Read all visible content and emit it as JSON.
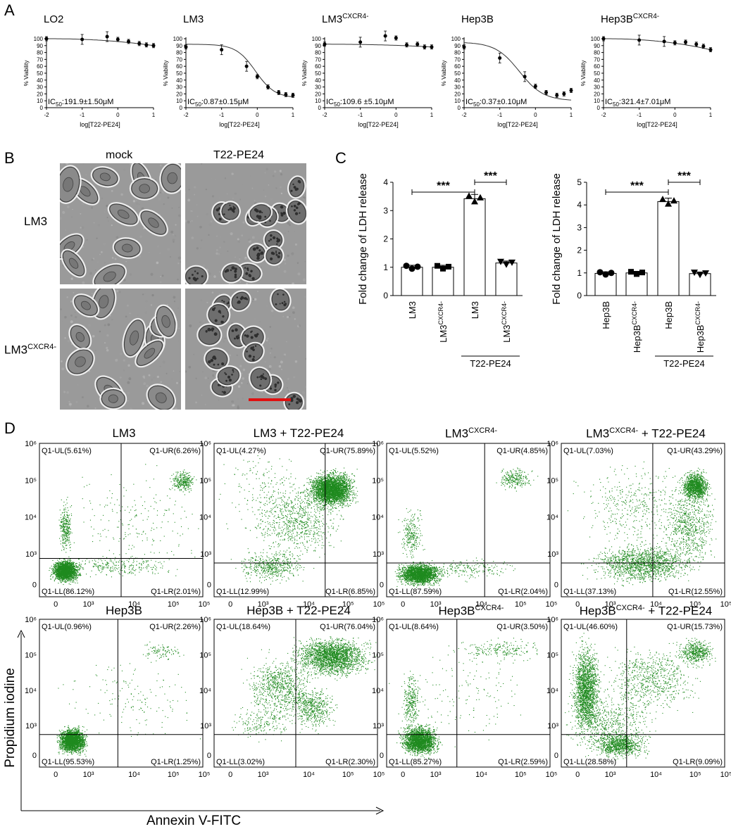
{
  "panels": {
    "A": "A",
    "B": "B",
    "C": "C",
    "D": "D"
  },
  "panel_a": {
    "ylabel": "% Viability",
    "xlabel": "log[T22-PE24]",
    "yticks": [
      "0",
      "10",
      "20",
      "30",
      "40",
      "50",
      "60",
      "70",
      "80",
      "90",
      "100"
    ],
    "xticks": [
      "-2",
      "-1",
      "0",
      "1"
    ],
    "plots": [
      {
        "title": "LO2",
        "title_sup": "",
        "ic50": "IC",
        "ic50_sub": "50",
        "ic50_val": ":191.9±1.50μM",
        "curve": "flat",
        "points": [
          [
            -2,
            100
          ],
          [
            -1,
            99
          ],
          [
            -0.3,
            103
          ],
          [
            0,
            99
          ],
          [
            0.3,
            96
          ],
          [
            0.6,
            93
          ],
          [
            0.8,
            91
          ],
          [
            1,
            90
          ]
        ]
      },
      {
        "title": "LM3",
        "title_sup": "",
        "ic50": "IC",
        "ic50_sub": "50",
        "ic50_val": ":0.87±0.15μM",
        "curve": "sigmoid",
        "points": [
          [
            -2,
            88
          ],
          [
            -1,
            84
          ],
          [
            -0.3,
            60
          ],
          [
            0,
            45
          ],
          [
            0.3,
            30
          ],
          [
            0.6,
            22
          ],
          [
            0.8,
            19
          ],
          [
            1,
            18
          ]
        ]
      },
      {
        "title": "LM3",
        "title_sup": "CXCR4-",
        "ic50": "IC",
        "ic50_sub": "50",
        "ic50_val": ":109.6 ±5.10μM",
        "curve": "flat",
        "points": [
          [
            -2,
            92
          ],
          [
            -1,
            95
          ],
          [
            -0.3,
            104
          ],
          [
            0,
            101
          ],
          [
            0.3,
            91
          ],
          [
            0.6,
            92
          ],
          [
            0.8,
            88
          ],
          [
            1,
            88
          ]
        ]
      },
      {
        "title": "Hep3B",
        "title_sup": "",
        "ic50": "IC",
        "ic50_sub": "50",
        "ic50_val": ":0.37±0.10μM",
        "curve": "sigmoid2",
        "points": [
          [
            -2,
            88
          ],
          [
            -1,
            72
          ],
          [
            -0.3,
            45
          ],
          [
            0,
            31
          ],
          [
            0.3,
            22
          ],
          [
            0.6,
            18
          ],
          [
            0.8,
            20
          ],
          [
            1,
            25
          ]
        ]
      },
      {
        "title": "Hep3B",
        "title_sup": "CXCR4-",
        "ic50": "IC",
        "ic50_sub": "50",
        "ic50_val": ":321.4±7.01μM",
        "curve": "flat",
        "points": [
          [
            -2,
            100
          ],
          [
            -1,
            98
          ],
          [
            -0.3,
            96
          ],
          [
            0,
            94
          ],
          [
            0.3,
            95
          ],
          [
            0.6,
            92
          ],
          [
            0.8,
            89
          ],
          [
            1,
            84
          ]
        ]
      }
    ]
  },
  "panel_b": {
    "col_labels": [
      "mock",
      "T22-PE24"
    ],
    "row_labels": [
      {
        "text": "LM3",
        "sup": ""
      },
      {
        "text": "LM3",
        "sup": "CXCR4-"
      }
    ]
  },
  "panel_c": {
    "ylabel": "Fold change of LDH release",
    "significance": "***",
    "treatment_label": "T22-PE24",
    "left": {
      "yticks": [
        "0",
        "1",
        "2",
        "3",
        "4"
      ],
      "categories": [
        {
          "text": "LM3",
          "sup": ""
        },
        {
          "text": "LM3",
          "sup": "CXCR4-"
        },
        {
          "text": "LM3",
          "sup": ""
        },
        {
          "text": "LM3",
          "sup": "CXCR4-"
        }
      ],
      "values": [
        1.0,
        1.0,
        3.42,
        1.15
      ],
      "markers": [
        "circle",
        "square",
        "triangle-up",
        "triangle-down"
      ]
    },
    "right": {
      "yticks": [
        "0",
        "1",
        "2",
        "3",
        "4",
        "5"
      ],
      "categories": [
        {
          "text": "Hep3B",
          "sup": ""
        },
        {
          "text": "Hep3B",
          "sup": "CXCR4-"
        },
        {
          "text": "Hep3B",
          "sup": ""
        },
        {
          "text": "Hep3B",
          "sup": "CXCR4-"
        }
      ],
      "values": [
        0.98,
        1.0,
        4.15,
        0.97
      ],
      "markers": [
        "circle",
        "square",
        "triangle-up",
        "triangle-down"
      ]
    }
  },
  "panel_d": {
    "ylabel": "Propidium iodine",
    "xlabel": "Annexin V-FITC",
    "yticks": [
      "0",
      "10³",
      "10⁴",
      "10⁵",
      "10⁶"
    ],
    "xticks": [
      "0",
      "10³",
      "10⁴",
      "10⁵"
    ],
    "dot_color": "#1f8a1f",
    "plots": [
      {
        "title": "LM3",
        "sup": "",
        "suffix": "",
        "ul": "Q1-UL(5.61%)",
        "ur": "Q1-UR(6.26%)",
        "ll": "Q1-LL(86.12%)",
        "lr": "Q1-LR(2.01%)"
      },
      {
        "title": "LM3 + T22-PE24",
        "sup": "",
        "suffix": "",
        "ul": "Q1-UL(4.27%)",
        "ur": "Q1-UR(75.89%)",
        "ll": "Q1-LL(12.99%)",
        "lr": "Q1-LR(6.85%)"
      },
      {
        "title": "LM3",
        "sup": "CXCR4-",
        "suffix": "",
        "ul": "Q1-UL(5.52%)",
        "ur": "Q1-UR(4.85%)",
        "ll": "Q1-LL(87.59%)",
        "lr": "Q1-LR(2.04%)"
      },
      {
        "title": "LM3",
        "sup": "CXCR4-",
        "suffix": " + T22-PE24",
        "ul": "Q1-UL(7.03%)",
        "ur": "Q1-UR(43.29%)",
        "ll": "Q1-LL(37.13%)",
        "lr": "Q1-LR(12.55%)"
      },
      {
        "title": "Hep3B",
        "sup": "",
        "suffix": "",
        "ul": "Q1-UL(0.96%)",
        "ur": "Q1-UR(2.26%)",
        "ll": "Q1-LL(95.53%)",
        "lr": "Q1-LR(1.25%)"
      },
      {
        "title": "Hep3B + T22-PE24",
        "sup": "",
        "suffix": "",
        "ul": "Q1-UL(18.64%)",
        "ur": "Q1-UR(76.04%)",
        "ll": "Q1-LL(3.02%)",
        "lr": "Q1-LR(2.30%)"
      },
      {
        "title": "Hep3B",
        "sup": "CXCR4-",
        "suffix": "",
        "ul": "Q1-UL(8.64%)",
        "ur": "Q1-UR(3.50%)",
        "ll": "Q1-LL(85.27%)",
        "lr": "Q1-LR(2.59%)"
      },
      {
        "title": "Hep3B",
        "sup": "CXCR4-",
        "suffix": " + T22-PE24",
        "ul": "Q1-UL(46.60%)",
        "ur": "Q1-UR(15.73%)",
        "ll": "Q1-LL(28.58%)",
        "lr": "Q1-LR(9.09%)"
      }
    ]
  },
  "colors": {
    "scale_bar": "#e01010",
    "micrograph_bg": "#9a9a9a"
  }
}
